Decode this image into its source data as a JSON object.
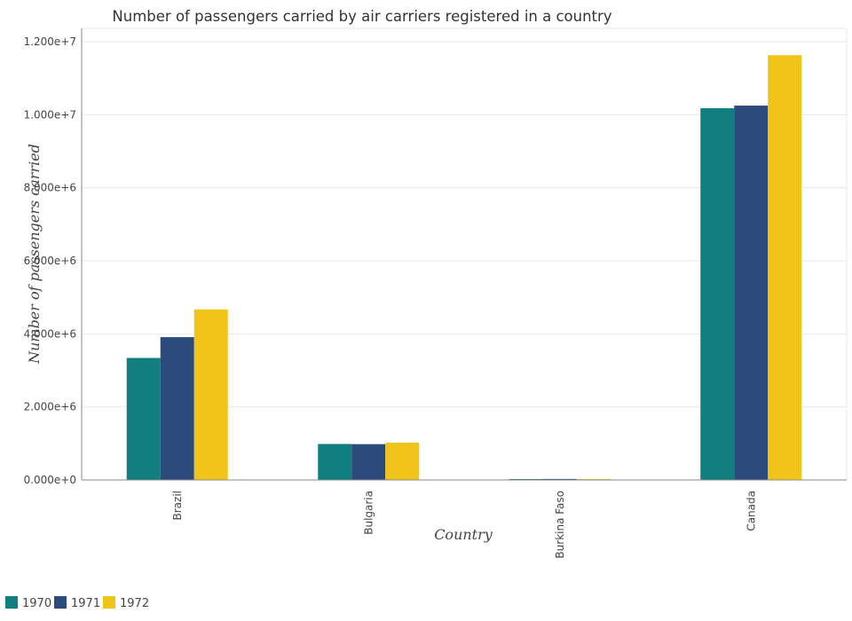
{
  "chart_data": {
    "type": "bar",
    "title": "Number of passengers carried by air carriers registered in a country",
    "xlabel": "Country",
    "ylabel": "Number of passengers carried",
    "categories": [
      "Brazil",
      "Bulgaria",
      "Burkina Faso",
      "Canada"
    ],
    "series": [
      {
        "name": "1970",
        "color": "#117f80",
        "values": [
          3340000,
          985000,
          25000,
          10180000
        ]
      },
      {
        "name": "1971",
        "color": "#2a4b7c",
        "values": [
          3910000,
          980000,
          27000,
          10250000
        ]
      },
      {
        "name": "1972",
        "color": "#f0c419",
        "values": [
          4670000,
          1020000,
          23000,
          11630000
        ]
      }
    ],
    "ylim": [
      0,
      12000000
    ],
    "yticks": [
      0,
      2000000,
      4000000,
      6000000,
      8000000,
      10000000,
      12000000
    ],
    "ytick_labels": [
      "0.000e+0",
      "2.000e+6",
      "4.000e+6",
      "6.000e+6",
      "8.000e+6",
      "1.000e+7",
      "1.200e+7"
    ],
    "grid": true,
    "legend_position": "bottom-left"
  }
}
